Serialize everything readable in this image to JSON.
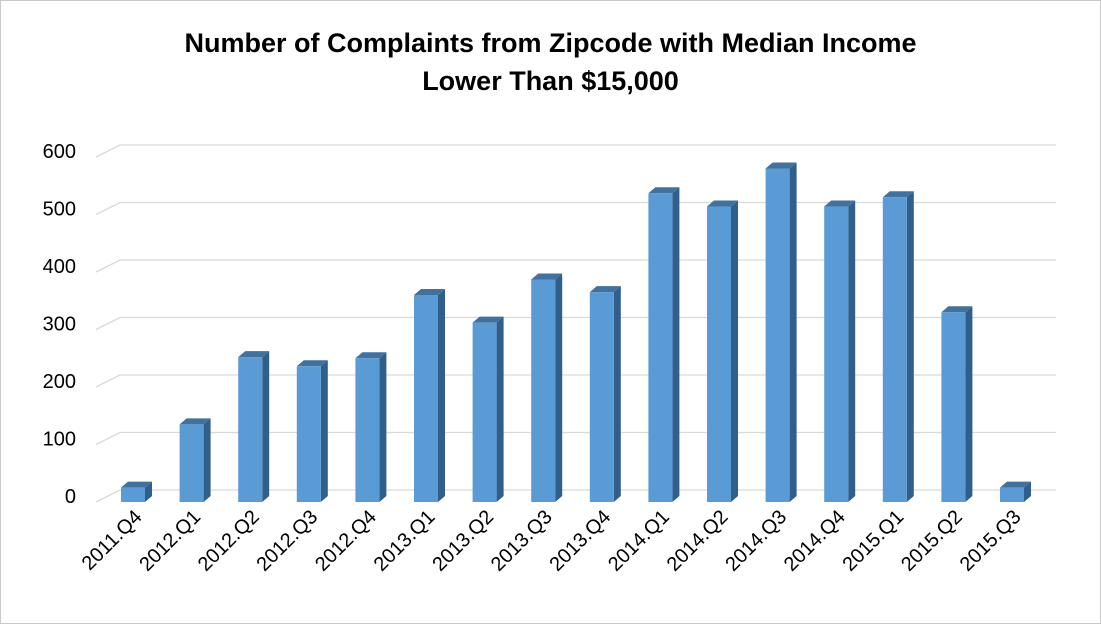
{
  "chart_data": {
    "type": "bar",
    "style": "3d-column",
    "title_lines": [
      "Number of Complaints from Zipcode with Median Income",
      "Lower Than $15,000"
    ],
    "xlabel": "",
    "ylabel": "",
    "categories": [
      "2011.Q4",
      "2012.Q1",
      "2012.Q2",
      "2012.Q3",
      "2012.Q4",
      "2013.Q1",
      "2013.Q2",
      "2013.Q3",
      "2013.Q4",
      "2014.Q1",
      "2014.Q2",
      "2014.Q3",
      "2014.Q4",
      "2015.Q1",
      "2015.Q2",
      "2015.Q3"
    ],
    "values": [
      25,
      135,
      252,
      236,
      250,
      360,
      312,
      387,
      365,
      537,
      514,
      580,
      514,
      530,
      330,
      25
    ],
    "ylim": [
      0,
      600
    ],
    "yticks": [
      0,
      100,
      200,
      300,
      400,
      500,
      600
    ],
    "grid": true,
    "legend": "none",
    "colors": {
      "bar_front": "#5b9bd5",
      "bar_side": "#2f5f8a",
      "bar_top": "#41719c",
      "gridline": "#d9d9d9"
    }
  }
}
